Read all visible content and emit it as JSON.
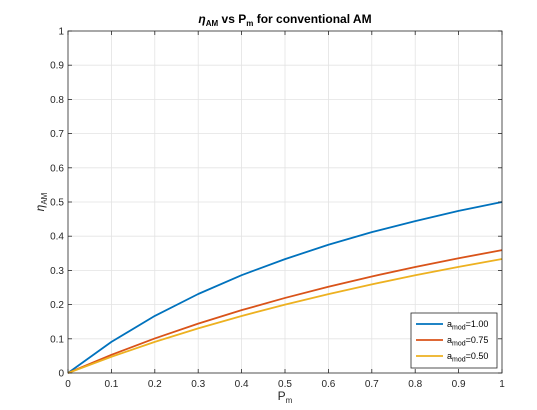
{
  "chart_data": {
    "type": "line",
    "title": {
      "main": "η",
      "main_sub": "AM",
      "mid": " vs P",
      "mid_sub": "m",
      "rest": " for conventional AM"
    },
    "xlabel": {
      "main": "P",
      "sub": "m"
    },
    "ylabel": {
      "main": "η",
      "sub": "AM"
    },
    "xlim": [
      0,
      1
    ],
    "ylim": [
      0,
      1
    ],
    "xticks": [
      "0",
      "0.1",
      "0.2",
      "0.3",
      "0.4",
      "0.5",
      "0.6",
      "0.7",
      "0.8",
      "0.9",
      "1"
    ],
    "yticks": [
      "0",
      "0.1",
      "0.2",
      "0.3",
      "0.4",
      "0.5",
      "0.6",
      "0.7",
      "0.8",
      "0.9",
      "1"
    ],
    "grid": true,
    "legend_position": "bottom-right",
    "x": [
      0,
      0.1,
      0.2,
      0.3,
      0.4,
      0.5,
      0.6,
      0.7,
      0.8,
      0.9,
      1.0
    ],
    "series": [
      {
        "name": {
          "main": "a",
          "sub": "mod",
          "rest": "=1.00"
        },
        "color": "#0072BD",
        "values": [
          0,
          0.091,
          0.167,
          0.231,
          0.286,
          0.333,
          0.375,
          0.412,
          0.444,
          0.474,
          0.5
        ]
      },
      {
        "name": {
          "main": "a",
          "sub": "mod",
          "rest": "=0.75"
        },
        "color": "#D95319",
        "values": [
          0,
          0.0532,
          0.1011,
          0.1443,
          0.1837,
          0.2195,
          0.2523,
          0.2823,
          0.31,
          0.3356,
          0.3593
        ]
      },
      {
        "name": {
          "main": "a",
          "sub": "mod",
          "rest": "=0.50"
        },
        "color": "#EDB120",
        "values": [
          0,
          0.0476,
          0.0909,
          0.1304,
          0.1667,
          0.2,
          0.2308,
          0.2593,
          0.2857,
          0.3103,
          0.3333
        ]
      }
    ]
  }
}
